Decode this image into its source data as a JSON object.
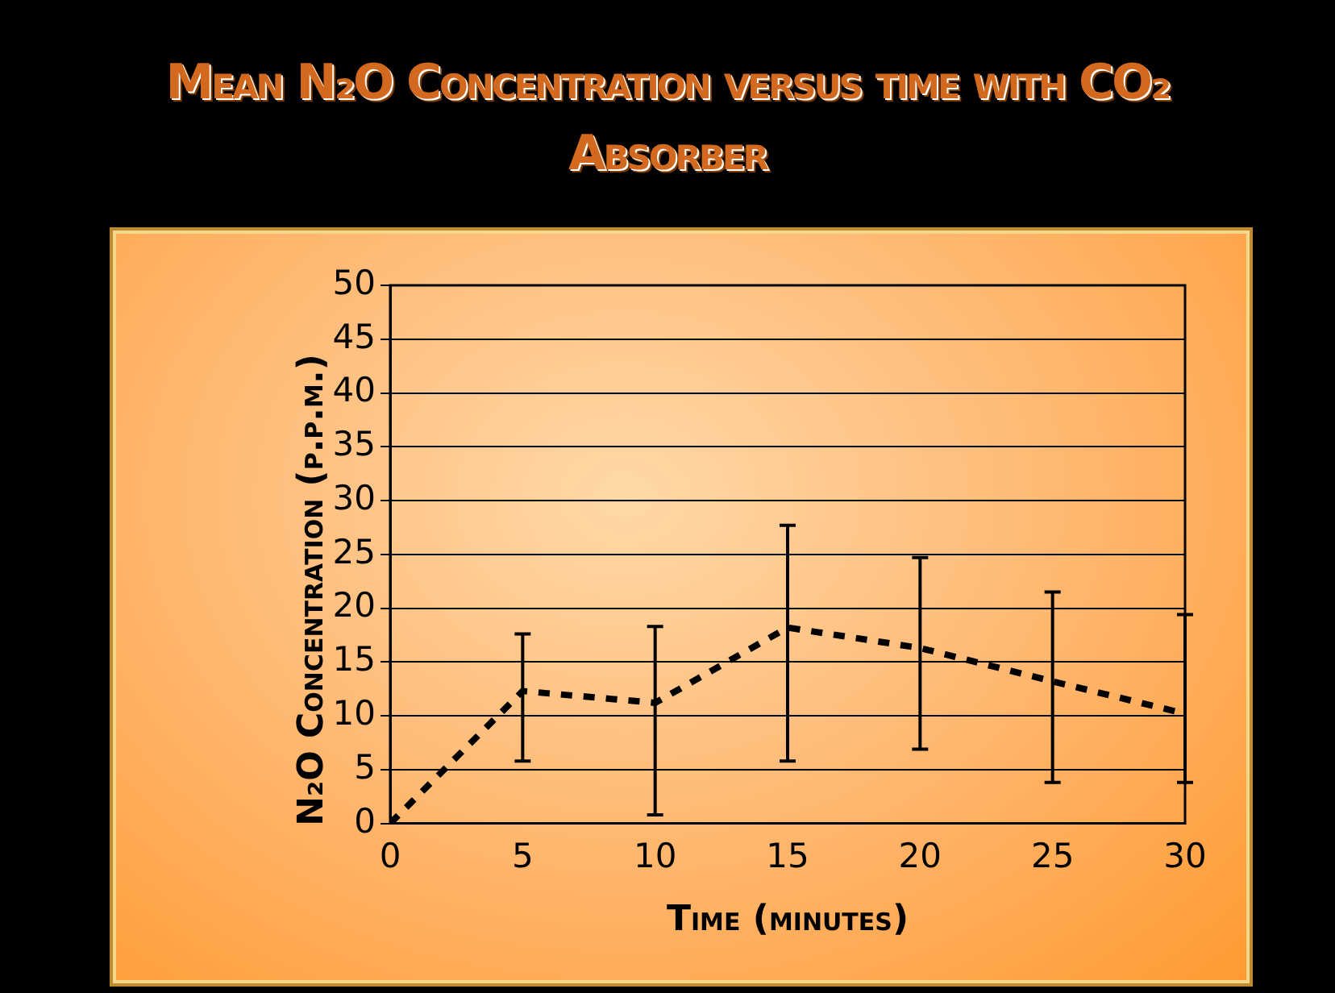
{
  "chart_data": {
    "type": "line",
    "title": "Mean N₂O Concentration versus time with CO₂ Absorber",
    "xlabel": "Time (minutes)",
    "ylabel": "N₂O Concentration (p.p.m.)",
    "x": [
      0,
      5,
      10,
      15,
      20,
      25,
      30
    ],
    "series": [
      {
        "color": "#000000",
        "values": [
          0,
          12.3,
          11.2,
          18.2,
          16.3,
          13.2,
          10.2
        ],
        "errors": [
          null,
          [
            5.8,
            17.6
          ],
          [
            0.8,
            18.3
          ],
          [
            5.8,
            27.7
          ],
          [
            6.9,
            24.7
          ],
          [
            3.8,
            21.5
          ],
          [
            3.8,
            19.4
          ]
        ]
      }
    ],
    "xlim": [
      0,
      30
    ],
    "xticks": [
      0,
      5,
      10,
      15,
      20,
      25,
      30
    ],
    "ylim": [
      0,
      50
    ],
    "yticks": [
      0,
      5,
      10,
      15,
      20,
      25,
      30,
      35,
      40,
      45,
      50
    ],
    "grid": "y",
    "legend": false,
    "marker": "none",
    "line_style": "dashed"
  }
}
